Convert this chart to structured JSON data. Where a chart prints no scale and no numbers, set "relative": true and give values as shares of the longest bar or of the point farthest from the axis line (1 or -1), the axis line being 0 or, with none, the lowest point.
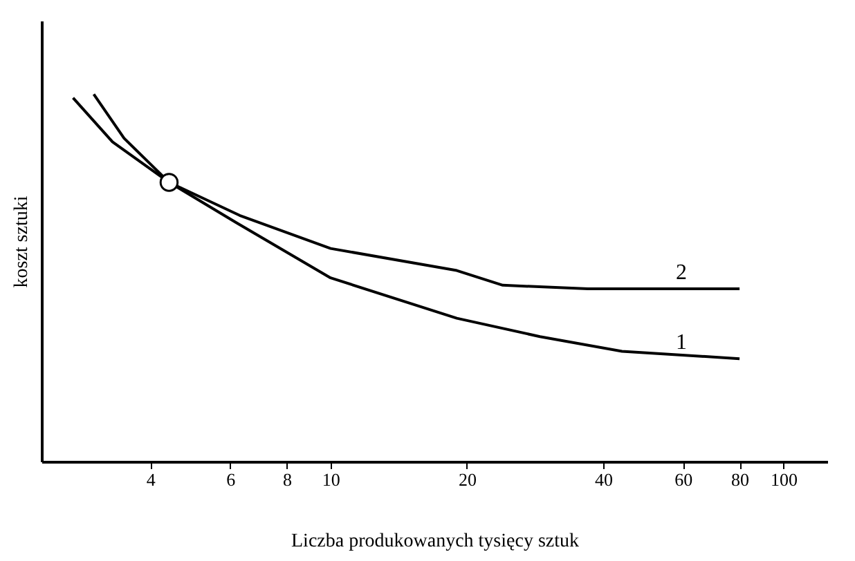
{
  "chart_data": {
    "type": "line",
    "relative": true,
    "xlabel": "Liczba produkowanych tysięcy sztuk",
    "ylabel": "koszt sztuki",
    "log": "x",
    "xlim": [
      2.3,
      125
    ],
    "xticks": [
      4,
      6,
      8,
      10,
      20,
      40,
      60,
      80,
      100
    ],
    "grid": false,
    "line_style": "solid",
    "series": [
      {
        "name": "1",
        "color": "#000000",
        "x": [
          3.0,
          3.5,
          4.4,
          6.2,
          10,
          19,
          29,
          44,
          80
        ],
        "values": [
          1,
          0.88,
          0.76,
          0.65,
          0.5,
          0.39,
          0.34,
          0.3,
          0.28
        ]
      },
      {
        "name": "2",
        "color": "#000000",
        "x": [
          2.7,
          3.3,
          4.4,
          6.3,
          10,
          19,
          24,
          37,
          80
        ],
        "values": [
          0.99,
          0.87,
          0.76,
          0.67,
          0.58,
          0.52,
          0.48,
          0.47,
          0.47
        ]
      },
      {
        "type": "scatter",
        "marker": "circle",
        "color": "#000000",
        "x": [
          4.4
        ],
        "values": [
          0.76
        ]
      }
    ]
  }
}
